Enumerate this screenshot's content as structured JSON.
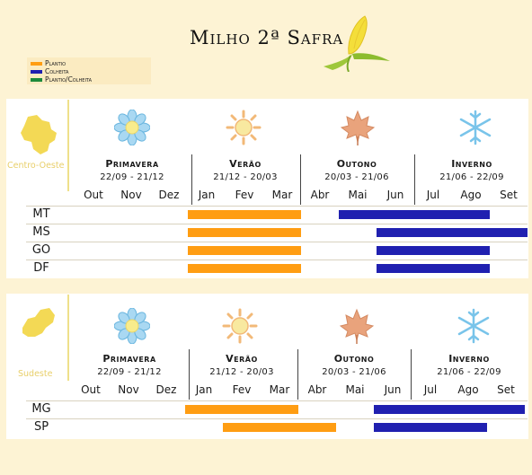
{
  "title": "Milho 2ª Safra",
  "colors": {
    "plantio": "#ff9d12",
    "colheita": "#2020b0",
    "plantio_colheita": "#1e8a3c"
  },
  "legend": [
    {
      "label": "Plantio",
      "color": "#ff9d12"
    },
    {
      "label": "Colheita",
      "color": "#2020b0"
    },
    {
      "label": "Plantio/Colheita",
      "color": "#1e8a3c"
    }
  ],
  "seasons": [
    {
      "name": "Primavera",
      "dates": "22/09 - 21/12",
      "icon": "flower-icon"
    },
    {
      "name": "Verão",
      "dates": "21/12 - 20/03",
      "icon": "sun-icon"
    },
    {
      "name": "Outono",
      "dates": "20/03 - 21/06",
      "icon": "leaf-icon"
    },
    {
      "name": "Inverno",
      "dates": "21/06 - 22/09",
      "icon": "snowflake-icon"
    }
  ],
  "months": [
    "Out",
    "Nov",
    "Dez",
    "Jan",
    "Fev",
    "Mar",
    "Abr",
    "Mai",
    "Jun",
    "Jul",
    "Ago",
    "Set"
  ],
  "regions": [
    {
      "name": "Centro-Oeste",
      "rows": [
        {
          "state": "MT",
          "plantio": [
            "Jan",
            "Mar"
          ],
          "colheita": [
            "Mai",
            "Ago"
          ]
        },
        {
          "state": "MS",
          "plantio": [
            "Jan",
            "Mar"
          ],
          "colheita": [
            "Jun",
            "Set"
          ]
        },
        {
          "state": "GO",
          "plantio": [
            "Jan",
            "Mar"
          ],
          "colheita": [
            "Jun",
            "Ago"
          ]
        },
        {
          "state": "DF",
          "plantio": [
            "Jan",
            "Mar"
          ],
          "colheita": [
            "Jun",
            "Ago"
          ]
        }
      ]
    },
    {
      "name": "Sudeste",
      "rows": [
        {
          "state": "MG",
          "plantio": [
            "Jan",
            "Mar"
          ],
          "colheita": [
            "Jun",
            "Set"
          ]
        },
        {
          "state": "SP",
          "plantio": [
            "Fev",
            "Abr"
          ],
          "colheita": [
            "Jun",
            "Ago"
          ]
        }
      ]
    }
  ]
}
